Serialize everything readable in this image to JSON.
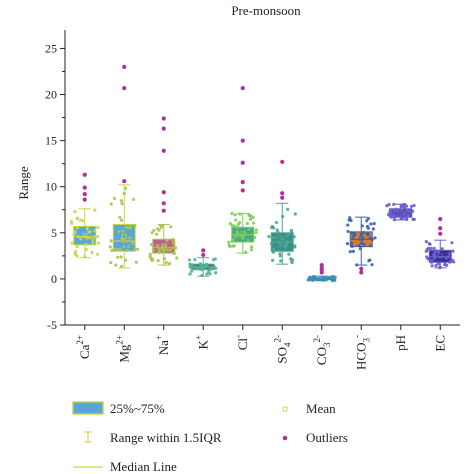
{
  "chart_data": {
    "type": "box",
    "title": "Pre-monsoon",
    "ylabel": "Range",
    "xlabel": "",
    "ylim": [
      -5,
      27
    ],
    "yticks": [
      -5,
      0,
      5,
      10,
      15,
      20,
      25
    ],
    "grid": false,
    "categories": [
      {
        "base": "Ca",
        "sup": "2+",
        "sub": ""
      },
      {
        "base": "Mg",
        "sup": "2+",
        "sub": ""
      },
      {
        "base": "Na",
        "sup": "+",
        "sub": ""
      },
      {
        "base": "K",
        "sup": "+",
        "sub": ""
      },
      {
        "base": "Cl",
        "sup": "-",
        "sub": ""
      },
      {
        "base": "SO",
        "sup": "2-",
        "sub": "4"
      },
      {
        "base": "CO",
        "sup": "2-",
        "sub": "3"
      },
      {
        "base": "HCO",
        "sup": "-",
        "sub": "3"
      },
      {
        "base": "pH",
        "sup": "",
        "sub": ""
      },
      {
        "base": "EC",
        "sup": "",
        "sub": ""
      }
    ],
    "boxes": [
      {
        "q1": 3.7,
        "median": 4.6,
        "q3": 5.7,
        "mean": 4.7,
        "whisker_low": 2.3,
        "whisker_high": 7.6,
        "fill": "#5aa5d9",
        "edge": "#c8d64a",
        "point": "#c8d64a",
        "outliers": [
          8.6,
          9.2,
          9.9,
          11.3
        ]
      },
      {
        "q1": 3.0,
        "median": 4.1,
        "q3": 5.9,
        "mean": 4.6,
        "whisker_low": 1.2,
        "whisker_high": 10.2,
        "fill": "#5aa5d9",
        "edge": "#c8d64a",
        "point": "#a6c84a",
        "outliers": [
          10.6,
          20.7,
          23.0
        ]
      },
      {
        "q1": 2.8,
        "median": 3.4,
        "q3": 4.3,
        "mean": 3.6,
        "whisker_low": 1.5,
        "whisker_high": 5.9,
        "fill": "#c75d8e",
        "edge": "#a6c84a",
        "point": "#a6c84a",
        "outliers": [
          7.4,
          8.2,
          9.4,
          13.9,
          16.3,
          17.4
        ]
      },
      {
        "q1": 1.0,
        "median": 1.3,
        "q3": 1.6,
        "mean": 1.35,
        "whisker_low": 0.3,
        "whisker_high": 2.3,
        "fill": "#7b4e8e",
        "edge": "#4fb38e",
        "point": "#4fb38e",
        "outliers": [
          2.6,
          3.1
        ]
      },
      {
        "q1": 4.0,
        "median": 4.8,
        "q3": 5.6,
        "mean": 4.9,
        "whisker_low": 2.8,
        "whisker_high": 7.1,
        "fill": "#4aa88a",
        "edge": "#7ccd5a",
        "point": "#7ccd5a",
        "outliers": [
          9.6,
          10.5,
          12.6,
          15.0,
          20.7
        ]
      },
      {
        "q1": 3.0,
        "median": 4.0,
        "q3": 5.0,
        "mean": 4.1,
        "whisker_low": 1.6,
        "whisker_high": 8.2,
        "fill": "#3a8f8c",
        "edge": "#4aa88a",
        "point": "#4aa88a",
        "outliers": [
          8.8,
          9.3,
          12.7
        ]
      },
      {
        "q1": -0.1,
        "median": 0.0,
        "q3": 0.1,
        "mean": 0.05,
        "whisker_low": -0.2,
        "whisker_high": 0.3,
        "fill": "#5a6fb0",
        "edge": "#3a8fb0",
        "point": "#3a8fb0",
        "outliers": [
          0.7,
          1.0,
          1.2,
          1.5
        ]
      },
      {
        "q1": 3.5,
        "median": 4.3,
        "q3": 5.1,
        "mean": 4.4,
        "whisker_low": 1.5,
        "whisker_high": 6.7,
        "fill": "#e07a2a",
        "edge": "#3a5fb0",
        "point": "#3a5fb0",
        "outliers": [
          0.7,
          1.1
        ]
      },
      {
        "q1": 6.7,
        "median": 7.1,
        "q3": 7.6,
        "mean": 7.15,
        "whisker_low": 6.4,
        "whisker_high": 8.1,
        "fill": "#5a4fb0",
        "edge": "#5a4fb0",
        "point": "#6a5fd0",
        "outliers": []
      },
      {
        "q1": 1.8,
        "median": 2.4,
        "q3": 3.1,
        "mean": 2.5,
        "whisker_low": 1.2,
        "whisker_high": 4.2,
        "fill": "#3a2f8a",
        "edge": "#6a5fd0",
        "point": "#6a5fd0",
        "outliers": [
          4.9,
          5.5,
          6.5
        ]
      }
    ],
    "legend": {
      "placement": "bottom",
      "box_label": "25%~75%",
      "range_label": "Range within 1.5IQR",
      "median_label": "Median Line",
      "mean_label": "Mean",
      "outlier_label": "Outliers",
      "box_fill": "#5aa5d9",
      "box_edge": "#c8d64a",
      "range_color": "#c8d64a",
      "median_color": "#c8d64a",
      "mean_color": "#c8d64a",
      "outlier_color": "#b0309a"
    }
  }
}
